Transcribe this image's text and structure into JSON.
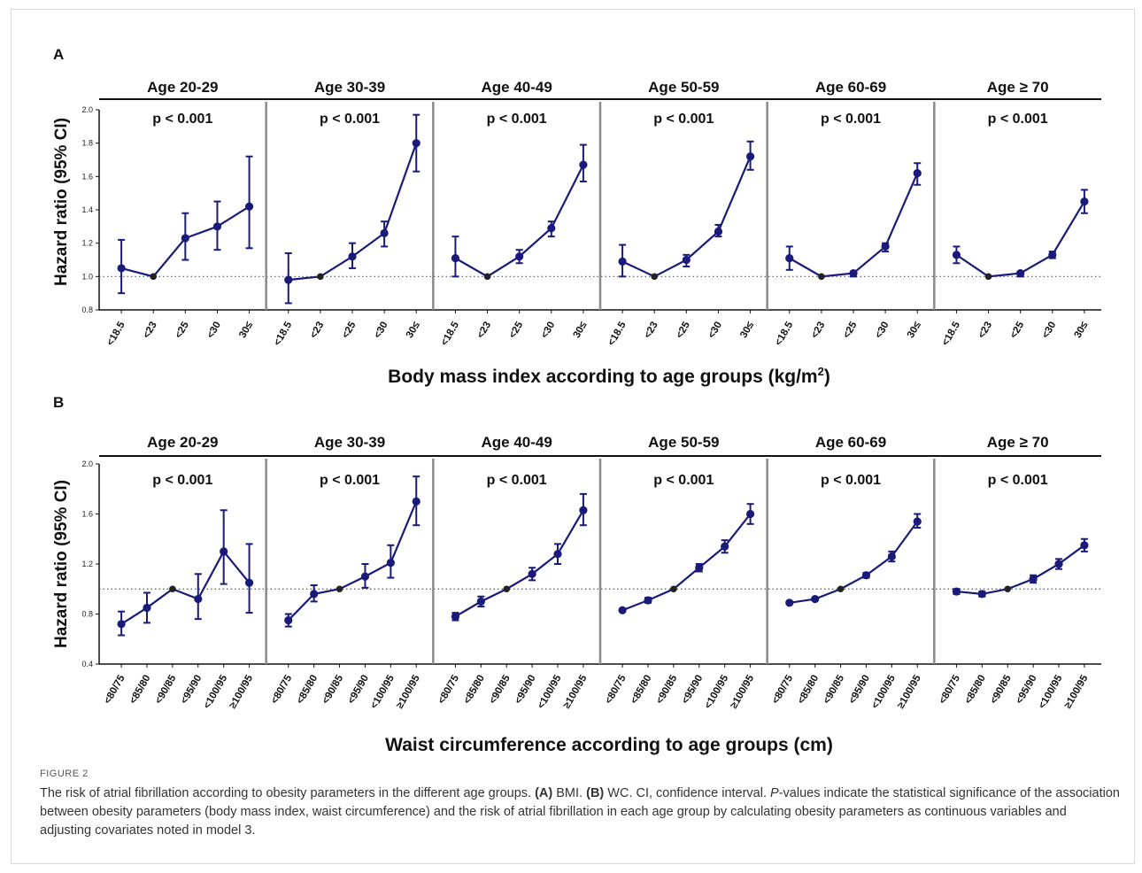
{
  "figure_label": "FIGURE 2",
  "caption": {
    "sentence1": "The risk of atrial fibrillation according to obesity parameters in the different age groups.",
    "a_tag": "(A)",
    "a_text": "BMI.",
    "b_tag": "(B)",
    "b_text": "WC. CI, confidence interval.",
    "p_letter": "P",
    "rest": "-values indicate the statistical significance of the association between obesity parameters (body mass index, waist circumference) and the risk of atrial fibrillation in each age group by calculating obesity parameters as continuous variables and adjusting covariates noted in model 3."
  },
  "chart_data": [
    {
      "type": "line",
      "panel_label": "A",
      "xlabel": "Body mass index according to age groups (kg/m",
      "xlabel_sup": "2",
      "xlabel_tail": ")",
      "ylabel": "Hazard ratio (95% CI)",
      "ylim": [
        0.8,
        2.0
      ],
      "yticks": [
        "0.8",
        "1.0",
        "1.2",
        "1.4",
        "1.6",
        "1.8",
        "2.0"
      ],
      "reference_line": 1.0,
      "categories": [
        "<18.5",
        "<23",
        "<25",
        "<30",
        "30≤"
      ],
      "reference_index": 1,
      "groups": [
        {
          "name": "Age 20-29",
          "p": "p < 0.001",
          "values": [
            1.05,
            1.0,
            1.23,
            1.3,
            1.42
          ],
          "ci_low": [
            0.9,
            1.0,
            1.1,
            1.16,
            1.17
          ],
          "ci_high": [
            1.22,
            1.0,
            1.38,
            1.45,
            1.72
          ]
        },
        {
          "name": "Age 30-39",
          "p": "p < 0.001",
          "values": [
            0.98,
            1.0,
            1.12,
            1.26,
            1.8
          ],
          "ci_low": [
            0.84,
            1.0,
            1.05,
            1.18,
            1.63
          ],
          "ci_high": [
            1.14,
            1.0,
            1.2,
            1.33,
            1.97
          ]
        },
        {
          "name": "Age 40-49",
          "p": "p < 0.001",
          "values": [
            1.11,
            1.0,
            1.12,
            1.29,
            1.67
          ],
          "ci_low": [
            1.0,
            1.0,
            1.08,
            1.24,
            1.57
          ],
          "ci_high": [
            1.24,
            1.0,
            1.16,
            1.33,
            1.79
          ]
        },
        {
          "name": "Age 50-59",
          "p": "p < 0.001",
          "values": [
            1.09,
            1.0,
            1.1,
            1.27,
            1.72
          ],
          "ci_low": [
            1.0,
            1.0,
            1.06,
            1.24,
            1.64
          ],
          "ci_high": [
            1.19,
            1.0,
            1.13,
            1.31,
            1.81
          ]
        },
        {
          "name": "Age 60-69",
          "p": "p < 0.001",
          "values": [
            1.11,
            1.0,
            1.02,
            1.18,
            1.62
          ],
          "ci_low": [
            1.04,
            1.0,
            1.0,
            1.15,
            1.55
          ],
          "ci_high": [
            1.18,
            1.0,
            1.03,
            1.2,
            1.68
          ]
        },
        {
          "name": "Age ≥ 70",
          "p": "p < 0.001",
          "values": [
            1.13,
            1.0,
            1.02,
            1.13,
            1.45
          ],
          "ci_low": [
            1.08,
            1.0,
            1.0,
            1.11,
            1.38
          ],
          "ci_high": [
            1.18,
            1.0,
            1.03,
            1.15,
            1.52
          ]
        }
      ]
    },
    {
      "type": "line",
      "panel_label": "B",
      "xlabel": "Waist circumference according to age groups (cm)",
      "ylabel": "Hazard ratio (95% CI)",
      "ylim": [
        0.4,
        2.0
      ],
      "yticks": [
        "0.4",
        "0.8",
        "1.2",
        "1.6",
        "2.0"
      ],
      "reference_line": 1.0,
      "categories": [
        "<80/75",
        "<85/80",
        "<90/85",
        "<95/90",
        "<100/95",
        "≥100/95"
      ],
      "reference_index": 2,
      "groups": [
        {
          "name": "Age 20-29",
          "p": "p < 0.001",
          "values": [
            0.72,
            0.85,
            1.0,
            0.92,
            1.3,
            1.05
          ],
          "ci_low": [
            0.63,
            0.73,
            1.0,
            0.76,
            1.04,
            0.81
          ],
          "ci_high": [
            0.82,
            0.97,
            1.0,
            1.12,
            1.63,
            1.36
          ]
        },
        {
          "name": "Age 30-39",
          "p": "p < 0.001",
          "values": [
            0.75,
            0.96,
            1.0,
            1.1,
            1.21,
            1.7
          ],
          "ci_low": [
            0.7,
            0.9,
            1.0,
            1.01,
            1.09,
            1.51
          ],
          "ci_high": [
            0.8,
            1.03,
            1.0,
            1.2,
            1.35,
            1.9
          ]
        },
        {
          "name": "Age 40-49",
          "p": "p < 0.001",
          "values": [
            0.78,
            0.9,
            1.0,
            1.12,
            1.28,
            1.63
          ],
          "ci_low": [
            0.75,
            0.86,
            1.0,
            1.07,
            1.2,
            1.51
          ],
          "ci_high": [
            0.81,
            0.94,
            1.0,
            1.17,
            1.36,
            1.76
          ]
        },
        {
          "name": "Age 50-59",
          "p": "p < 0.001",
          "values": [
            0.83,
            0.91,
            1.0,
            1.17,
            1.34,
            1.6
          ],
          "ci_low": [
            0.82,
            0.89,
            1.0,
            1.14,
            1.29,
            1.52
          ],
          "ci_high": [
            0.84,
            0.93,
            1.0,
            1.2,
            1.39,
            1.68
          ]
        },
        {
          "name": "Age 60-69",
          "p": "p < 0.001",
          "values": [
            0.89,
            0.92,
            1.0,
            1.11,
            1.26,
            1.54
          ],
          "ci_low": [
            0.88,
            0.91,
            1.0,
            1.09,
            1.22,
            1.49
          ],
          "ci_high": [
            0.9,
            0.93,
            1.0,
            1.13,
            1.3,
            1.6
          ]
        },
        {
          "name": "Age ≥ 70",
          "p": "p < 0.001",
          "values": [
            0.98,
            0.96,
            1.0,
            1.08,
            1.2,
            1.35
          ],
          "ci_low": [
            0.96,
            0.94,
            1.0,
            1.05,
            1.16,
            1.3
          ],
          "ci_high": [
            1.0,
            0.98,
            1.0,
            1.11,
            1.24,
            1.4
          ]
        }
      ]
    }
  ],
  "colors": {
    "series": "#1a1a7a",
    "reference_point": "#222222",
    "reference_line": "#555555",
    "divider": "#8a8a8a",
    "header_rule": "#111111"
  }
}
